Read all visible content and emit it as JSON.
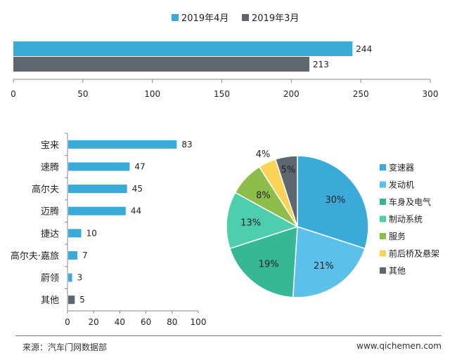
{
  "colors": {
    "blue": "#3aaad9",
    "gray": "#5e6770",
    "axis": "#888888"
  },
  "chart_data": [
    {
      "type": "bar",
      "orientation": "horizontal",
      "series": [
        {
          "name": "2019年4月",
          "values": [
            244
          ],
          "color": "#3aaad9"
        },
        {
          "name": "2019年3月",
          "values": [
            213
          ],
          "color": "#5e6770"
        }
      ],
      "xlim": [
        0,
        300
      ],
      "xticks": [
        0,
        50,
        100,
        150,
        200,
        250,
        300
      ],
      "legend": "top-center",
      "grid": false
    },
    {
      "type": "bar",
      "orientation": "horizontal",
      "categories": [
        "宝来",
        "速腾",
        "高尔夫",
        "迈腾",
        "捷达",
        "高尔夫·嘉旅",
        "蔚领",
        "其他"
      ],
      "values": [
        83,
        47,
        45,
        44,
        10,
        7,
        3,
        5
      ],
      "bar_colors": [
        "#3aaad9",
        "#3aaad9",
        "#3aaad9",
        "#3aaad9",
        "#3aaad9",
        "#3aaad9",
        "#3aaad9",
        "#5e6770"
      ],
      "xlim": [
        0,
        100
      ],
      "xticks": [
        0,
        20,
        40,
        60,
        80,
        100
      ],
      "grid": false
    },
    {
      "type": "pie",
      "labels": [
        "变速器",
        "发动机",
        "车身及电气",
        "制动系统",
        "服务",
        "前后桥及悬架",
        "其他"
      ],
      "values": [
        30,
        21,
        19,
        13,
        8,
        4,
        5
      ],
      "value_labels": [
        "30%",
        "21%",
        "19%",
        "13%",
        "8%",
        "4%",
        "5%"
      ],
      "colors": [
        "#3aaad9",
        "#5bc0ea",
        "#37b894",
        "#4dcfad",
        "#8dbd4a",
        "#fbd355",
        "#5e6770"
      ],
      "legend": "right"
    }
  ],
  "footer": {
    "source": "来源：汽车门网数据部",
    "site": "www.qichemen.com"
  }
}
